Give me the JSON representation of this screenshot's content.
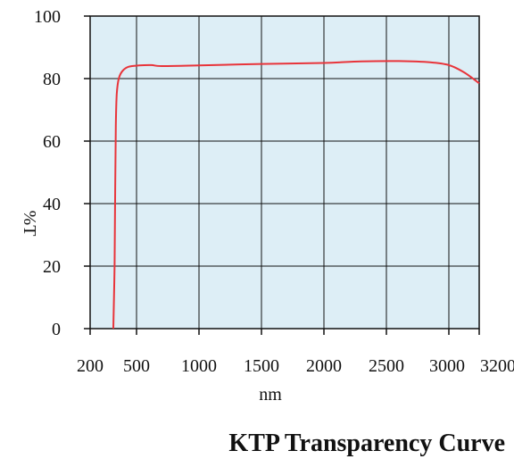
{
  "chart_data": {
    "type": "line",
    "title": "KTP Transparency Curve",
    "xlabel": "nm",
    "ylabel": "%T",
    "x_ticks": [
      200,
      500,
      1000,
      1500,
      2000,
      2500,
      3000,
      3200
    ],
    "y_ticks": [
      0,
      20,
      40,
      60,
      80,
      100
    ],
    "xlim": [
      200,
      3200
    ],
    "ylim": [
      0,
      100
    ],
    "grid": true,
    "colors": {
      "plot_background": "#ddeef6",
      "grid": "#111111",
      "line": "#e8343a"
    },
    "series": [
      {
        "points": [
          [
            350,
            0
          ],
          [
            358,
            20
          ],
          [
            362,
            45
          ],
          [
            366,
            65
          ],
          [
            372,
            75
          ],
          [
            385,
            80
          ],
          [
            410,
            82.5
          ],
          [
            450,
            83.8
          ],
          [
            520,
            84.2
          ],
          [
            620,
            84.3
          ],
          [
            700,
            84
          ],
          [
            1000,
            84.2
          ],
          [
            1500,
            84.7
          ],
          [
            2000,
            85
          ],
          [
            2300,
            85.5
          ],
          [
            2600,
            85.6
          ],
          [
            2850,
            85.2
          ],
          [
            3000,
            84.3
          ],
          [
            3100,
            82
          ],
          [
            3200,
            78.5
          ]
        ]
      }
    ]
  }
}
